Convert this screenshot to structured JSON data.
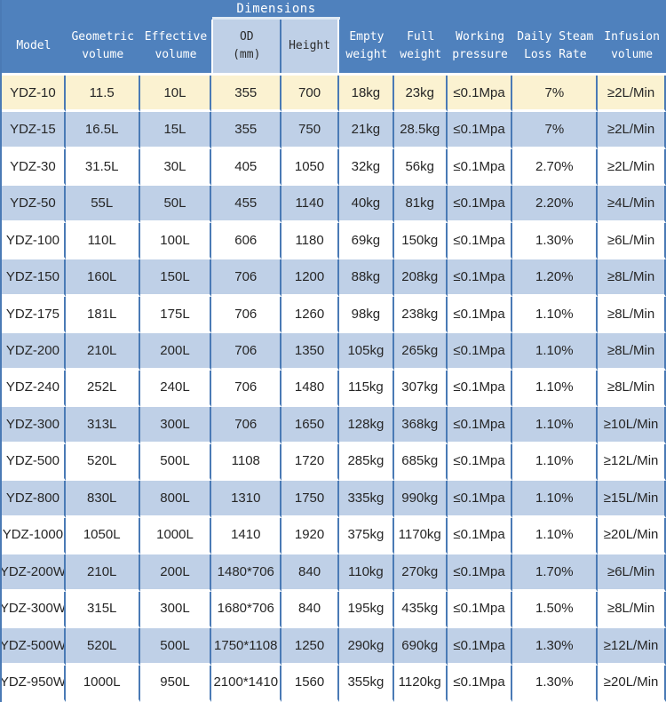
{
  "table": {
    "group_header": "Dimensions",
    "columns": [
      {
        "id": "model",
        "label": "Model"
      },
      {
        "id": "geometric-volume",
        "label": "Geometric\nvolume"
      },
      {
        "id": "effective-volume",
        "label": "Effective\nvolume"
      },
      {
        "id": "od",
        "label": "OD\n(mm)"
      },
      {
        "id": "height",
        "label": "Height"
      },
      {
        "id": "empty-weight",
        "label": "Empty\nweight"
      },
      {
        "id": "full-weight",
        "label": "Full\nweight"
      },
      {
        "id": "working-pressure",
        "label": "Working\npressure"
      },
      {
        "id": "daily-steam-loss",
        "label": "Daily Steam\nLoss Rate"
      },
      {
        "id": "infusion-volume",
        "label": "Infusion\nvolume"
      }
    ],
    "rows": [
      [
        "YDZ-10",
        "11.5",
        "10L",
        "355",
        "700",
        "18kg",
        "23kg",
        "≤0.1Mpa",
        "7%",
        "≥2L/Min"
      ],
      [
        "YDZ-15",
        "16.5L",
        "15L",
        "355",
        "750",
        "21kg",
        "28.5kg",
        "≤0.1Mpa",
        "7%",
        "≥2L/Min"
      ],
      [
        "YDZ-30",
        "31.5L",
        "30L",
        "405",
        "1050",
        "32kg",
        "56kg",
        "≤0.1Mpa",
        "2.70%",
        "≥2L/Min"
      ],
      [
        "YDZ-50",
        "55L",
        "50L",
        "455",
        "1140",
        "40kg",
        "81kg",
        "≤0.1Mpa",
        "2.20%",
        "≥4L/Min"
      ],
      [
        "YDZ-100",
        "110L",
        "100L",
        "606",
        "1180",
        "69kg",
        "150kg",
        "≤0.1Mpa",
        "1.30%",
        "≥6L/Min"
      ],
      [
        "YDZ-150",
        "160L",
        "150L",
        "706",
        "1200",
        "88kg",
        "208kg",
        "≤0.1Mpa",
        "1.20%",
        "≥8L/Min"
      ],
      [
        "YDZ-175",
        "181L",
        "175L",
        "706",
        "1260",
        "98kg",
        "238kg",
        "≤0.1Mpa",
        "1.10%",
        "≥8L/Min"
      ],
      [
        "YDZ-200",
        "210L",
        "200L",
        "706",
        "1350",
        "105kg",
        "265kg",
        "≤0.1Mpa",
        "1.10%",
        "≥8L/Min"
      ],
      [
        "YDZ-240",
        "252L",
        "240L",
        "706",
        "1480",
        "115kg",
        "307kg",
        "≤0.1Mpa",
        "1.10%",
        "≥8L/Min"
      ],
      [
        "YDZ-300",
        "313L",
        "300L",
        "706",
        "1650",
        "128kg",
        "368kg",
        "≤0.1Mpa",
        "1.10%",
        "≥10L/Min"
      ],
      [
        "YDZ-500",
        "520L",
        "500L",
        "1108",
        "1720",
        "285kg",
        "685kg",
        "≤0.1Mpa",
        "1.10%",
        "≥12L/Min"
      ],
      [
        "YDZ-800",
        "830L",
        "800L",
        "1310",
        "1750",
        "335kg",
        "990kg",
        "≤0.1Mpa",
        "1.10%",
        "≥15L/Min"
      ],
      [
        "YDZ-1000",
        "1050L",
        "1000L",
        "1410",
        "1920",
        "375kg",
        "1170kg",
        "≤0.1Mpa",
        "1.10%",
        "≥20L/Min"
      ],
      [
        "YDZ-200W",
        "210L",
        "200L",
        "1480*706",
        "840",
        "110kg",
        "270kg",
        "≤0.1Mpa",
        "1.70%",
        "≥6L/Min"
      ],
      [
        "YDZ-300W",
        "315L",
        "300L",
        "1680*706",
        "840",
        "195kg",
        "435kg",
        "≤0.1Mpa",
        "1.50%",
        "≥8L/Min"
      ],
      [
        "YDZ-500W",
        "520L",
        "500L",
        "1750*1108",
        "1250",
        "290kg",
        "690kg",
        "≤0.1Mpa",
        "1.30%",
        "≥12L/Min"
      ],
      [
        "YDZ-950W",
        "1000L",
        "950L",
        "2100*1410",
        "1560",
        "355kg",
        "1120kg",
        "≤0.1Mpa",
        "1.30%",
        "≥20L/Min"
      ]
    ]
  },
  "colors": {
    "header_blue": "#4f81bd",
    "light_blue_row": "#bfd0e7",
    "cream_row": "#fbf2d1",
    "grid_line_blue": "#4a7ab5",
    "header_text": "#ffffff",
    "body_text": "#262626"
  }
}
